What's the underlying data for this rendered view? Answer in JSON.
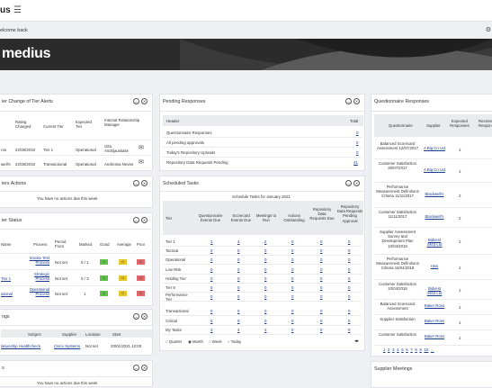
{
  "topbar": {
    "logo": "us",
    "menu_icon": "hamburger-icon"
  },
  "welcome": {
    "text": "elcome back",
    "gear_icon": "gear-icon"
  },
  "banner": {
    "logo_text": "medius"
  },
  "tier_alerts": {
    "title": "ier Change of Tier Alerts",
    "headers": [
      "Rating Changed",
      "Current Tier",
      "Expected Tier",
      "Internal Relationship Manager"
    ],
    "rows": [
      {
        "name": "ros",
        "date": "22/08/2018",
        "current": "Tier 1",
        "expected": "Operational",
        "manager": "Gita Andrijauskaite"
      },
      {
        "name": "well's",
        "date": "22/08/2018",
        "current": "Transactional",
        "expected": "Operational",
        "manager": "Andressa Neves"
      }
    ]
  },
  "actions": {
    "title": "iers Actions",
    "empty": "You have no actions due this week"
  },
  "tier_status": {
    "title": "ier Status",
    "headers": [
      "Name",
      "Process",
      "Period From",
      "Marked",
      "Good",
      "Average",
      "Poor"
    ],
    "rows": [
      {
        "name": "",
        "process": "Smoke Test Process",
        "period": "Not set",
        "marked": "0 / 1",
        "good": "1",
        "average": "0",
        "poor": "1"
      },
      {
        "name": "Tier 1",
        "process": "Strategic Process",
        "period": "Not set",
        "marked": "0 / 3",
        "good": "1",
        "average": "0",
        "poor": "0"
      },
      {
        "name": "ational",
        "process": "Operational Process",
        "period": "Not set",
        "marked": "1",
        "good": "1",
        "average": "0",
        "poor": "1"
      }
    ]
  },
  "meetings": {
    "title": "ngs",
    "headers": [
      "Subject",
      "Supplier",
      "Location",
      "Start"
    ],
    "row": {
      "subject": "lationship Healthcheck",
      "supplier": "Cisco Systems",
      "location": "Not set",
      "start": "20/01/2021 12:00"
    }
  },
  "bottom_left": {
    "title": "s",
    "empty": "You have no actions due this week"
  },
  "pending": {
    "title": "Pending Responses",
    "headers": [
      "Header",
      "Total"
    ],
    "rows": [
      {
        "label": "Questionnaire Responses",
        "total": "0"
      },
      {
        "label": "All pending approvals",
        "total": "0"
      },
      {
        "label": "Today's Repository Uploads",
        "total": "0"
      },
      {
        "label": "Repository Data Requests Pending",
        "total": "41"
      }
    ]
  },
  "scheduled": {
    "title": "Scheduled Tasks",
    "caption": "Schedule Tasks for January 2021",
    "headers": [
      "Tier",
      "Questionnaire Events Due",
      "Scorecard Events Due",
      "Meetings to Run",
      "Actions Outstanding",
      "Repository Data Requests Due",
      "Repository Data Requests Pending Approval"
    ],
    "rows": [
      {
        "tier": "Tier 1",
        "v": [
          "3",
          "4",
          "2",
          "0",
          "0",
          "0"
        ]
      },
      {
        "tier": "Tactical",
        "v": [
          "0",
          "0",
          "0",
          "0",
          "0",
          "0"
        ]
      },
      {
        "tier": "Operational",
        "v": [
          "0",
          "0",
          "0",
          "0",
          "0",
          "0"
        ]
      },
      {
        "tier": "Low Risk",
        "v": [
          "0",
          "0",
          "0",
          "0",
          "0",
          "0"
        ]
      },
      {
        "tier": "Holding Tier",
        "v": [
          "0",
          "0",
          "0",
          "0",
          "0",
          "0"
        ]
      },
      {
        "tier": "Tier 8",
        "v": [
          "0",
          "0",
          "0",
          "0",
          "0",
          "0"
        ]
      },
      {
        "tier": "Performance Tier",
        "v": [
          "0",
          "0",
          "0",
          "0",
          "0",
          "0"
        ]
      },
      {
        "tier": "Transactional",
        "v": [
          "0",
          "0",
          "0",
          "0",
          "0",
          "0"
        ]
      },
      {
        "tier": "Critical",
        "v": [
          "0",
          "0",
          "0",
          "0",
          "0",
          "0"
        ]
      },
      {
        "tier": "My Tasks",
        "v": [
          "3",
          "4",
          "2",
          "0",
          "0",
          "0"
        ]
      }
    ],
    "radios": [
      "Quarter",
      "Month",
      "Week",
      "Today"
    ],
    "radio_selected": "Month"
  },
  "questionnaire": {
    "title": "Questionnaire Responses",
    "headers": [
      "Questionnaire",
      "Supplier",
      "Expected Responses",
      "Receive Respons"
    ],
    "rows": [
      {
        "q": "Balanced Scorecard Assessment 12/07/2017",
        "s": "A Big Co Ltd",
        "e": "1"
      },
      {
        "q": "Customer Satisfaction 26/07/2017",
        "s": "A Big Co Ltd",
        "e": "1"
      },
      {
        "q": "Performance Measurement Definitions Criteria 11/11/2017",
        "s": "Blackwell's",
        "e": "2"
      },
      {
        "q": "Customer Satisfaction 11/11/2017",
        "s": "Blackwell's",
        "e": "2"
      },
      {
        "q": "Supplier Assessment Survey and Development Plan 10/04/2018",
        "s": "Bidvest 3463 Ltd",
        "e": "1"
      },
      {
        "q": "Performance Measurement Definitions Criteria 16/04/2018",
        "s": "Hiss",
        "e": "1"
      },
      {
        "q": "Customer Satisfaction 10/04/2018",
        "s": "Bidvest 3463 Ltd",
        "e": "1"
      },
      {
        "q": "Balanced Scorecard Assessment",
        "s": "Baker Ross",
        "e": "1"
      },
      {
        "q": "Supplier Satisfaction",
        "s": "Baker Ross",
        "e": "1"
      },
      {
        "q": "Customer Satisfaction",
        "s": "Baker Ross",
        "e": "1"
      }
    ],
    "pages": [
      "1",
      "2",
      "3",
      "4",
      "5",
      "6",
      "7",
      "8",
      "9",
      "10",
      "..."
    ]
  },
  "supplier_meetings": {
    "title": "Supplier Meetings"
  }
}
